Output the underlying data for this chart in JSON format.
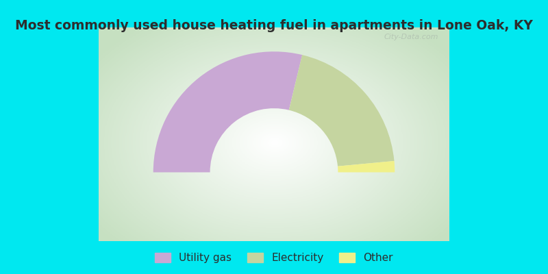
{
  "title": "Most commonly used house heating fuel in apartments in Lone Oak, KY",
  "title_color": "#2d2d2d",
  "title_fontsize": 13.5,
  "background_color": "#00e8f0",
  "segments": [
    {
      "label": "Utility gas",
      "value": 57.5,
      "color": "#c9a8d4"
    },
    {
      "label": "Electricity",
      "value": 39.5,
      "color": "#c5d5a0"
    },
    {
      "label": "Other",
      "value": 3.0,
      "color": "#f0f08a"
    }
  ],
  "legend_labels": [
    "Utility gas",
    "Electricity",
    "Other"
  ],
  "legend_colors": [
    "#c9a8d4",
    "#c5d5a0",
    "#f0f08a"
  ],
  "watermark": "City-Data.com",
  "fig_width": 8.0,
  "fig_height": 4.0
}
